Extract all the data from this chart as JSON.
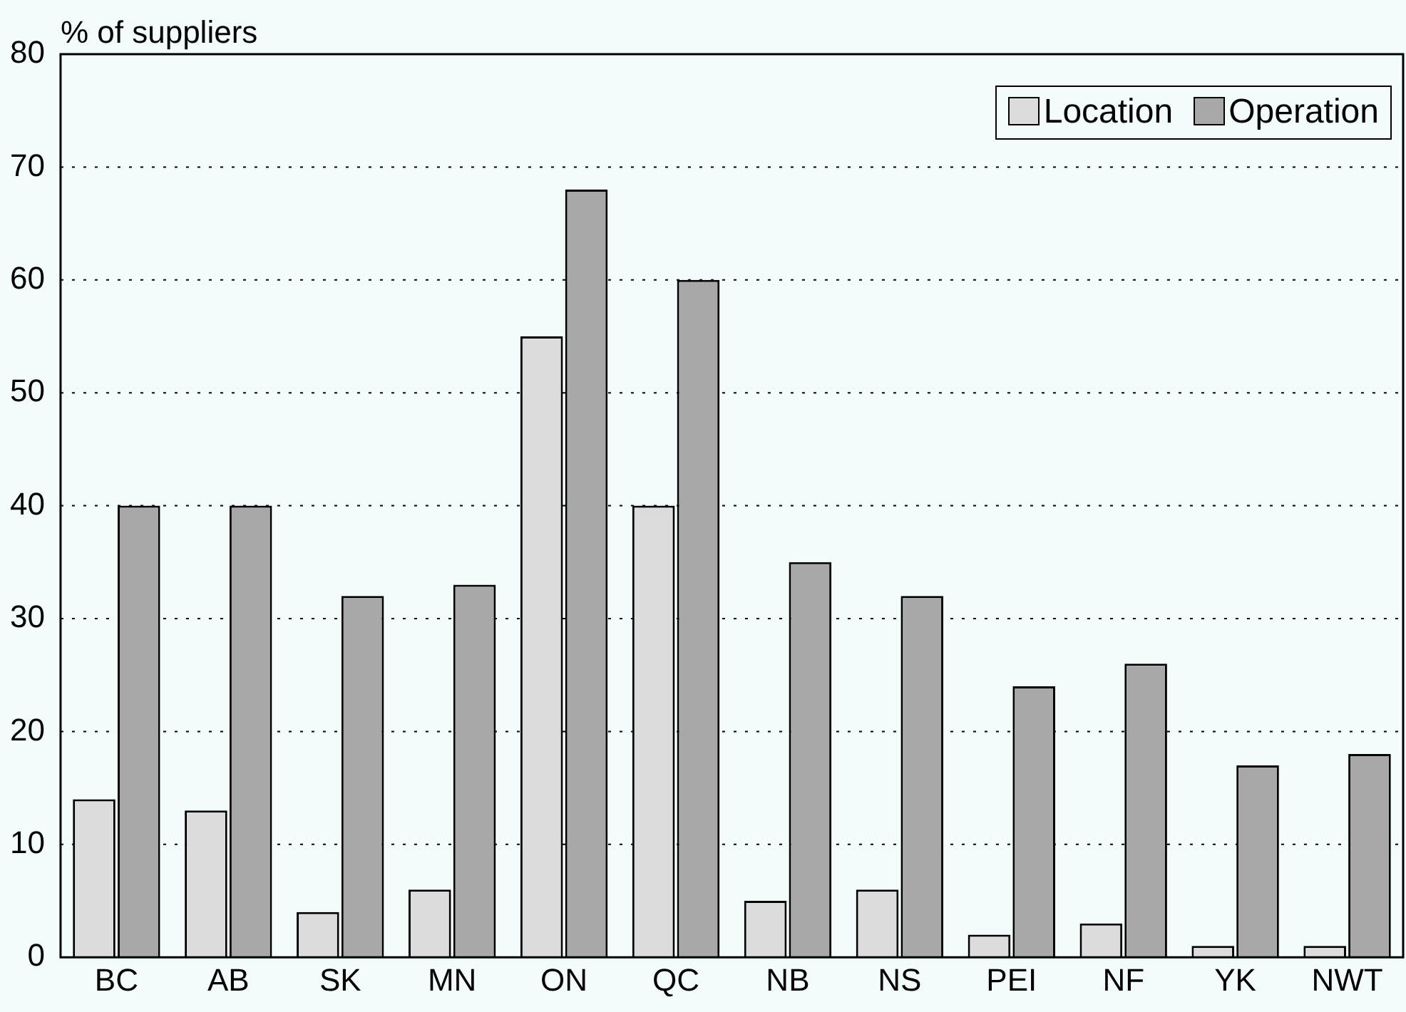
{
  "chart_data": {
    "type": "bar",
    "ylabel": "% of suppliers",
    "categories": [
      "BC",
      "AB",
      "SK",
      "MN",
      "ON",
      "QC",
      "NB",
      "NS",
      "PEI",
      "NF",
      "YK",
      "NWT"
    ],
    "series": [
      {
        "name": "Location",
        "color": "#dcdcdc",
        "values": [
          14,
          13,
          4,
          6,
          55,
          40,
          5,
          6,
          2,
          3,
          1,
          1
        ]
      },
      {
        "name": "Operation",
        "color": "#a8a8a8",
        "values": [
          40,
          40,
          32,
          33,
          68,
          60,
          35,
          32,
          24,
          26,
          17,
          18
        ]
      }
    ],
    "ylim": [
      0,
      80
    ],
    "yticks": [
      0,
      10,
      20,
      30,
      40,
      50,
      60,
      70,
      80
    ],
    "grid": "y",
    "legend": "top right"
  }
}
